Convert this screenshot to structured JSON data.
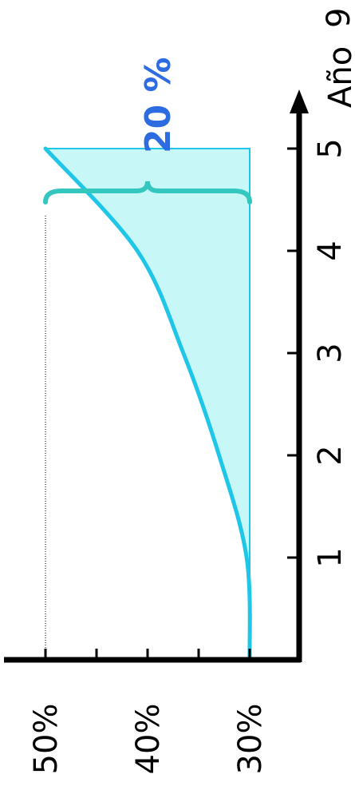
{
  "chart_data": {
    "type": "area",
    "orientation": "rotated-90-clockwise",
    "x": [
      0,
      1,
      2,
      3,
      4,
      5
    ],
    "series": [
      {
        "values": [
          30,
          30.3,
          33,
          36.5,
          41,
          50
        ]
      }
    ],
    "baseline": 30,
    "x_ticks": [
      "1",
      "2",
      "3",
      "4",
      "5"
    ],
    "y_ticks": [
      "30%",
      "40%",
      "50%"
    ],
    "xlabel": "Año",
    "xlabel_suffix": "9",
    "ylabel": "",
    "xlim": [
      0,
      5.9
    ],
    "ylim": [
      30,
      50
    ],
    "annotation": {
      "text": "20 %",
      "color": "#2d6be0"
    },
    "colors": {
      "fill": "#c8f7f7",
      "line": "#1fc6e8",
      "brace": "#33c7c0",
      "axis": "#000000"
    },
    "grid": false
  }
}
